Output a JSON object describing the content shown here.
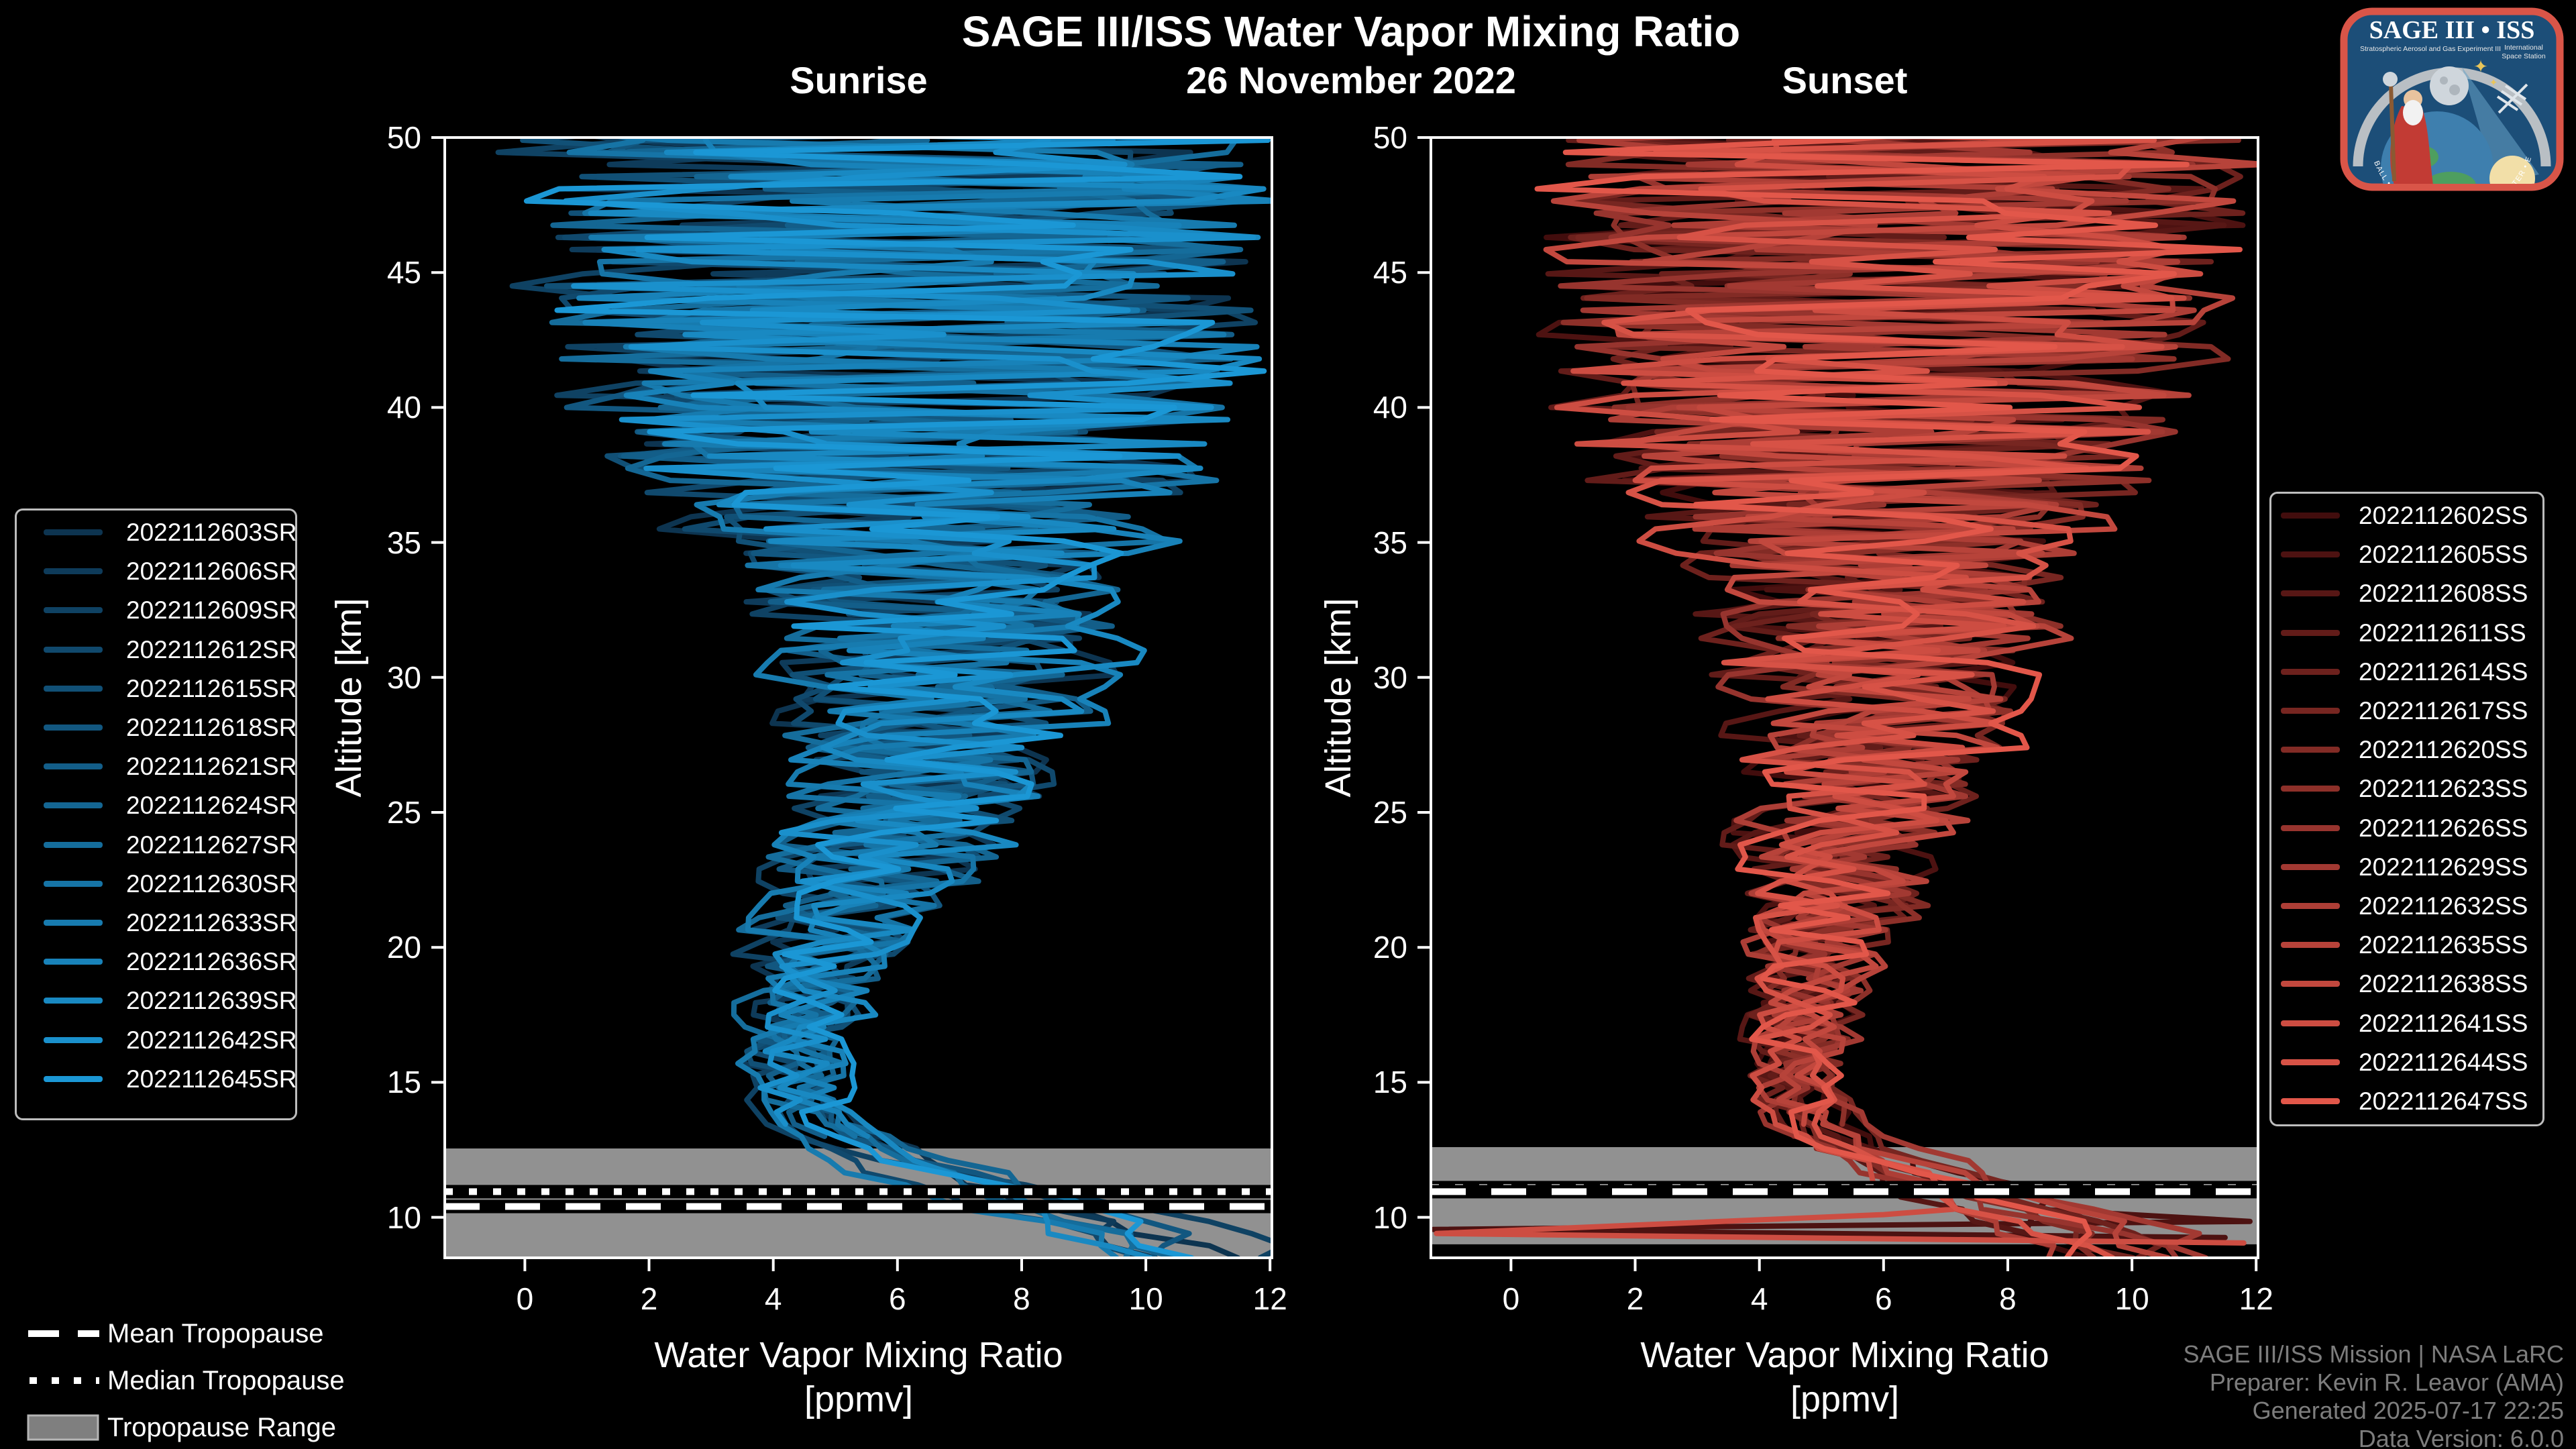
{
  "header": {
    "title": "SAGE III/ISS Water Vapor Mixing Ratio",
    "date": "26 November 2022"
  },
  "panel_titles": {
    "sunrise": "Sunrise",
    "sunset": "Sunset"
  },
  "axis": {
    "x_label": "Water Vapor Mixing Ratio",
    "x_unit": "[ppmv]",
    "y_label": "Altitude [km]"
  },
  "chart_data": [
    {
      "type": "line",
      "panel": "sunrise",
      "title": "Sunrise",
      "xlabel": "Water Vapor Mixing Ratio [ppmv]",
      "ylabel": "Altitude [km]",
      "xlim": [
        -1.29,
        12.03
      ],
      "ylim": [
        8.5,
        50
      ],
      "x_ticks": [
        0,
        2,
        4,
        6,
        8,
        10,
        12
      ],
      "y_ticks": [
        10,
        15,
        20,
        25,
        30,
        35,
        40,
        45,
        50
      ],
      "grid": false,
      "legend_position": "outside-left",
      "color_ramp": [
        "#0d3450",
        "#1b97d5"
      ],
      "series": [
        {
          "name": "2022112603SR"
        },
        {
          "name": "2022112606SR"
        },
        {
          "name": "2022112609SR"
        },
        {
          "name": "2022112612SR"
        },
        {
          "name": "2022112615SR"
        },
        {
          "name": "2022112618SR"
        },
        {
          "name": "2022112621SR"
        },
        {
          "name": "2022112624SR"
        },
        {
          "name": "2022112627SR"
        },
        {
          "name": "2022112630SR"
        },
        {
          "name": "2022112633SR"
        },
        {
          "name": "2022112636SR"
        },
        {
          "name": "2022112639SR"
        },
        {
          "name": "2022112642SR"
        },
        {
          "name": "2022112645SR"
        }
      ],
      "profile_envelope": {
        "altitude_km": [
          50,
          46,
          42,
          38,
          35,
          32,
          29,
          26,
          23,
          20,
          18,
          16,
          14.5,
          13.5,
          12.5,
          11.5,
          10.5,
          9.5,
          8.5
        ],
        "center_ppmv": [
          6.0,
          6.0,
          6.2,
          6.3,
          6.4,
          6.6,
          6.7,
          6.4,
          5.7,
          4.9,
          4.5,
          4.3,
          4.4,
          4.7,
          5.6,
          6.8,
          8.0,
          9.2,
          10.0
        ],
        "spread_ppmv": [
          6.4,
          6.3,
          5.8,
          5.2,
          4.3,
          3.4,
          2.9,
          2.6,
          2.1,
          1.5,
          1.2,
          0.95,
          0.75,
          0.8,
          1.6,
          2.6,
          3.2,
          3.2,
          3.0
        ]
      },
      "tropopause": {
        "mean_km": 10.4,
        "median_km": 10.95,
        "range_km": [
          8.5,
          12.55
        ]
      },
      "style": {
        "seed": 911,
        "stoppers": [
          4,
          6,
          9,
          11,
          13
        ],
        "divers": [
          0,
          2
        ],
        "horizontals": []
      }
    },
    {
      "type": "line",
      "panel": "sunset",
      "title": "Sunset",
      "xlabel": "Water Vapor Mixing Ratio [ppmv]",
      "ylabel": "Altitude [km]",
      "xlim": [
        -1.29,
        12.03
      ],
      "ylim": [
        8.5,
        50
      ],
      "x_ticks": [
        0,
        2,
        4,
        6,
        8,
        10,
        12
      ],
      "y_ticks": [
        10,
        15,
        20,
        25,
        30,
        35,
        40,
        45,
        50
      ],
      "grid": false,
      "legend_position": "outside-right",
      "color_ramp": [
        "#420d0d",
        "#e2574a"
      ],
      "series": [
        {
          "name": "2022112602SS"
        },
        {
          "name": "2022112605SS"
        },
        {
          "name": "2022112608SS"
        },
        {
          "name": "2022112611SS"
        },
        {
          "name": "2022112614SS"
        },
        {
          "name": "2022112617SS"
        },
        {
          "name": "2022112620SS"
        },
        {
          "name": "2022112623SS"
        },
        {
          "name": "2022112626SS"
        },
        {
          "name": "2022112629SS"
        },
        {
          "name": "2022112632SS"
        },
        {
          "name": "2022112635SS"
        },
        {
          "name": "2022112638SS"
        },
        {
          "name": "2022112641SS"
        },
        {
          "name": "2022112644SS"
        },
        {
          "name": "2022112647SS"
        }
      ],
      "profile_envelope": {
        "altitude_km": [
          50,
          46,
          42,
          38,
          35,
          32,
          29,
          26,
          23,
          20,
          18,
          16,
          14.5,
          13.5,
          12.5,
          11.5,
          10.5,
          9.5,
          8.5
        ],
        "center_ppmv": [
          6.2,
          6.2,
          6.0,
          5.8,
          5.8,
          5.9,
          6.0,
          5.8,
          5.3,
          4.9,
          4.7,
          4.6,
          4.6,
          4.8,
          5.5,
          6.6,
          7.8,
          9.0,
          9.8
        ],
        "spread_ppmv": [
          6.4,
          6.0,
          5.6,
          4.8,
          3.8,
          3.1,
          2.7,
          2.4,
          1.9,
          1.4,
          1.1,
          0.9,
          0.8,
          0.9,
          1.7,
          2.6,
          3.2,
          3.3,
          3.0
        ]
      },
      "tropopause": {
        "mean_km": 10.95,
        "median_km": 11.1,
        "range_km": [
          9.0,
          12.6
        ]
      },
      "style": {
        "seed": 407,
        "stoppers": [
          3,
          7,
          12
        ],
        "divers": [],
        "horizontals": [
          1,
          13
        ]
      }
    }
  ],
  "tropopause_legend": {
    "mean": "Mean Tropopause",
    "median": "Median Tropopause",
    "range": "Tropopause Range"
  },
  "attribution": {
    "line1": "SAGE III/ISS Mission | NASA LaRC",
    "line2": "Preparer: Kevin R. Leavor (AMA)",
    "line3": "Generated 2025-07-17 22:25",
    "line4": "Data Version: 6.0.0"
  },
  "logo": {
    "title": "SAGE III • ISS",
    "subtitle_left": "Stratospheric Aerosol and Gas Experiment III",
    "subtitle_right1": "International",
    "subtitle_right2": "Space Station",
    "ring_text": "BALL • NASA LANGLEY RESEARCH CENTER • ESA"
  },
  "colors": {
    "background": "#000000",
    "text": "#ffffff",
    "muted_text": "#7d7d7d",
    "band": "#919191",
    "spine": "#ffffff",
    "legend_border": "#bdbdbd"
  }
}
